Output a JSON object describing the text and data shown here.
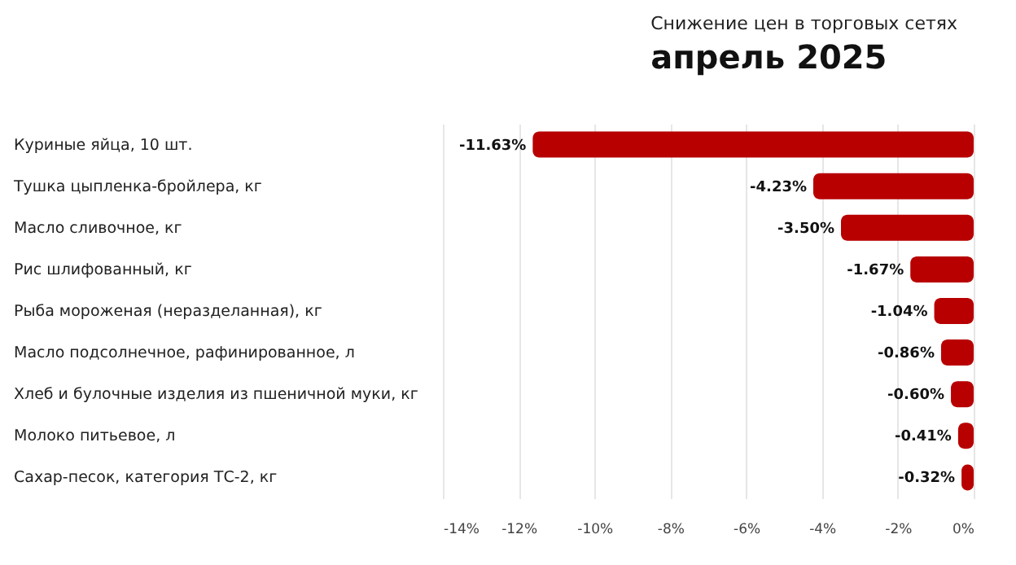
{
  "chart_data": {
    "type": "bar",
    "orientation": "horizontal",
    "title": "апрель 2025",
    "subtitle": "Снижение цен в торговых сетях",
    "categories": [
      "Куриные яйца, 10 шт.",
      "Тушка цыпленка-бройлера, кг",
      "Масло сливочное, кг",
      "Рис шлифованный, кг",
      "Рыба мороженая (неразделанная), кг",
      "Масло подсолнечное, рафинированное, л",
      "Хлеб и булочные изделия из пшеничной муки, кг",
      "Молоко питьевое, л",
      "Сахар-песок, категория ТС-2, кг"
    ],
    "values": [
      -11.63,
      -4.23,
      -3.5,
      -1.67,
      -1.04,
      -0.86,
      -0.6,
      -0.41,
      -0.32
    ],
    "value_labels": [
      "-11.63%",
      "-4.23%",
      "-3.50%",
      "-1.67%",
      "-1.04%",
      "-0.86%",
      "-0.60%",
      "-0.41%",
      "-0.32%"
    ],
    "color": "#b80000",
    "xlim": [
      -14,
      0
    ],
    "xticks": [
      {
        "value": -14,
        "label": "-14%"
      },
      {
        "value": -12,
        "label": "-12%"
      },
      {
        "value": -10,
        "label": "-10%"
      },
      {
        "value": -8,
        "label": "-8%"
      },
      {
        "value": -6,
        "label": "-6%"
      },
      {
        "value": -4,
        "label": "-4%"
      },
      {
        "value": -2,
        "label": "-2%"
      },
      {
        "value": 0,
        "label": "0%"
      }
    ],
    "grid": "x"
  }
}
